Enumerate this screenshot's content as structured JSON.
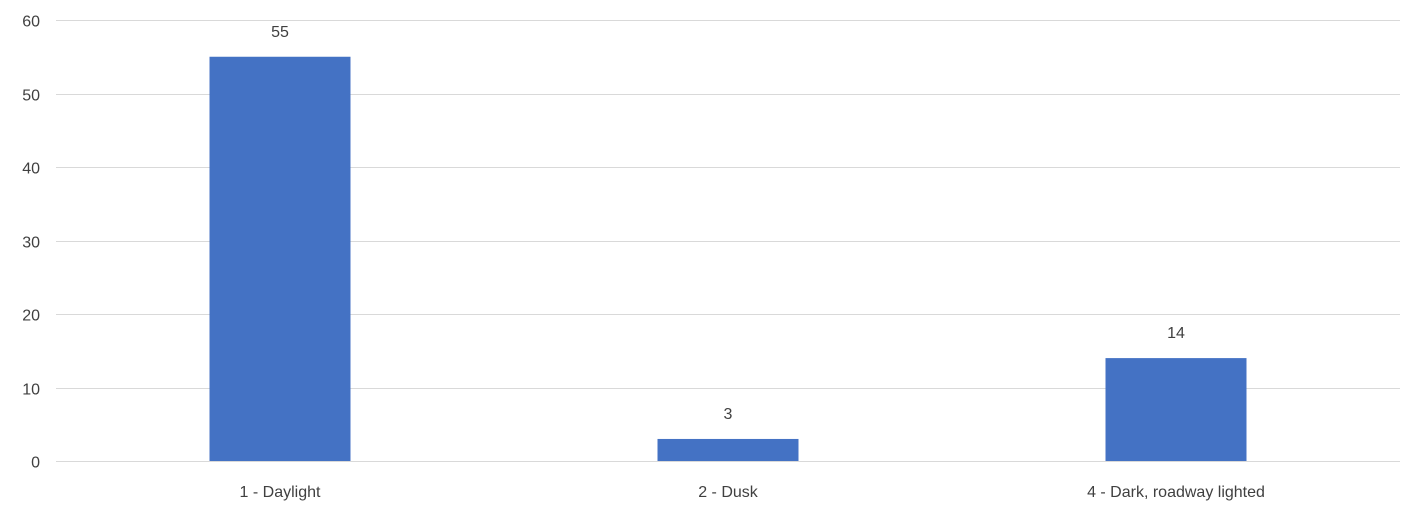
{
  "chart_data": {
    "type": "bar",
    "categories": [
      "1 - Daylight",
      "2 - Dusk",
      "4 - Dark, roadway lighted"
    ],
    "values": [
      55,
      3,
      14
    ],
    "data_labels": [
      "55",
      "3",
      "14"
    ],
    "title": "",
    "xlabel": "",
    "ylabel": "",
    "ylim": [
      0,
      60
    ],
    "yticks": [
      0,
      10,
      20,
      30,
      40,
      50,
      60
    ],
    "grid": true,
    "legend": "none",
    "colors": {
      "bar": "#4472C4",
      "grid": "#D9D9D9",
      "text": "#404040"
    }
  }
}
